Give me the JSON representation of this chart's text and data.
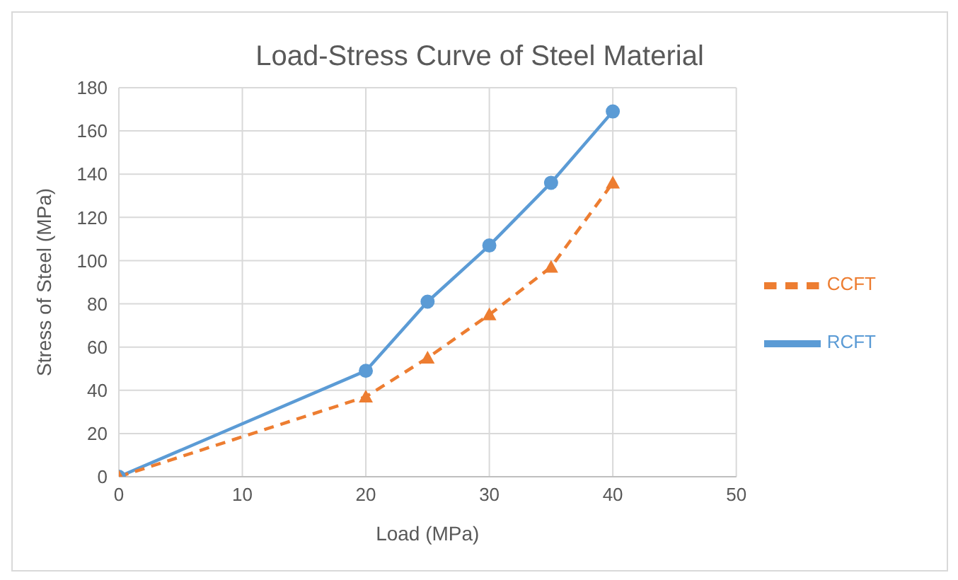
{
  "chart_data": {
    "type": "line",
    "title": "Load-Stress Curve of Steel Material",
    "xlabel": "Load (MPa)",
    "ylabel": "Stress of Steel (MPa)",
    "x": [
      0,
      20,
      25,
      30,
      35,
      40
    ],
    "series": [
      {
        "name": "RCFT",
        "color": "#5b9bd5",
        "values": [
          0,
          49,
          81,
          107,
          136,
          169
        ],
        "marker": "circle",
        "line_style": "solid"
      },
      {
        "name": "CCFT",
        "color": "#ed7d31",
        "values": [
          0,
          37,
          55,
          75,
          97,
          136
        ],
        "marker": "triangle",
        "line_style": "dashed"
      }
    ],
    "xlim": [
      0,
      50
    ],
    "xticks": [
      0,
      10,
      20,
      30,
      40,
      50
    ],
    "ylim": [
      0,
      180
    ],
    "yticks": [
      0,
      20,
      40,
      60,
      80,
      100,
      120,
      140,
      160,
      180
    ],
    "grid": true,
    "legend": "right"
  }
}
